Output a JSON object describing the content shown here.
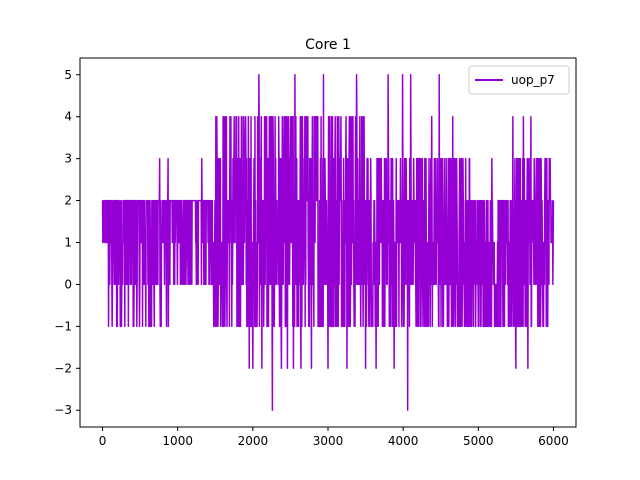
{
  "chart_data": {
    "type": "line",
    "title": "Core 1",
    "xlabel": "",
    "ylabel": "",
    "xlim": [
      -300,
      6300
    ],
    "ylim": [
      -3.4,
      5.4
    ],
    "xticks": [
      0,
      1000,
      2000,
      3000,
      4000,
      5000,
      6000
    ],
    "yticks": [
      -3,
      -2,
      -1,
      0,
      1,
      2,
      3,
      4,
      5
    ],
    "grid": false,
    "legend_position": "top-right",
    "series": [
      {
        "name": "uop_p7",
        "color": "#9400d3",
        "x_range": [
          0,
          6000
        ],
        "x_step": 4,
        "segments": [
          {
            "from": 0,
            "to": 80,
            "values": [
              1,
              2
            ]
          },
          {
            "from": 80,
            "to": 900,
            "values": [
              -1,
              0,
              1,
              2,
              2,
              2
            ]
          },
          {
            "from": 900,
            "to": 1500,
            "values": [
              0,
              1,
              2,
              2,
              2
            ]
          },
          {
            "from": 1500,
            "to": 3500,
            "values": [
              -1,
              0,
              1,
              2,
              3,
              4
            ]
          },
          {
            "from": 3500,
            "to": 4900,
            "values": [
              -1,
              0,
              1,
              2,
              3
            ]
          },
          {
            "from": 4900,
            "to": 5400,
            "values": [
              -1,
              0,
              1,
              2
            ]
          },
          {
            "from": 5400,
            "to": 6000,
            "values": [
              -1,
              0,
              1,
              2,
              3
            ]
          }
        ],
        "spikes": [
          {
            "x": 760,
            "y": 3
          },
          {
            "x": 870,
            "y": 3
          },
          {
            "x": 1320,
            "y": 3
          },
          {
            "x": 1480,
            "y": -1
          },
          {
            "x": 1520,
            "y": 4
          },
          {
            "x": 1700,
            "y": 4
          },
          {
            "x": 1880,
            "y": 4
          },
          {
            "x": 1950,
            "y": -2
          },
          {
            "x": 2000,
            "y": -2
          },
          {
            "x": 2080,
            "y": 5
          },
          {
            "x": 2120,
            "y": -2
          },
          {
            "x": 2260,
            "y": -3
          },
          {
            "x": 2380,
            "y": -2
          },
          {
            "x": 2460,
            "y": -2
          },
          {
            "x": 2540,
            "y": -2
          },
          {
            "x": 2560,
            "y": 5
          },
          {
            "x": 2640,
            "y": -2
          },
          {
            "x": 2780,
            "y": -2
          },
          {
            "x": 2940,
            "y": 5
          },
          {
            "x": 3000,
            "y": -2
          },
          {
            "x": 3250,
            "y": -2
          },
          {
            "x": 3380,
            "y": 5
          },
          {
            "x": 3500,
            "y": -2
          },
          {
            "x": 3640,
            "y": -2
          },
          {
            "x": 3800,
            "y": 5
          },
          {
            "x": 3880,
            "y": -2
          },
          {
            "x": 3990,
            "y": 5
          },
          {
            "x": 4060,
            "y": -3
          },
          {
            "x": 4100,
            "y": 5
          },
          {
            "x": 4480,
            "y": 5
          },
          {
            "x": 4380,
            "y": 4
          },
          {
            "x": 4660,
            "y": 4
          },
          {
            "x": 4750,
            "y": 3
          },
          {
            "x": 5180,
            "y": 3
          },
          {
            "x": 5460,
            "y": 4
          },
          {
            "x": 5500,
            "y": -2
          },
          {
            "x": 5600,
            "y": -2
          },
          {
            "x": 5660,
            "y": -2
          },
          {
            "x": 5600,
            "y": 4
          },
          {
            "x": 5700,
            "y": 4
          },
          {
            "x": 5900,
            "y": 3
          },
          {
            "x": 5980,
            "y": 1
          }
        ]
      }
    ]
  }
}
